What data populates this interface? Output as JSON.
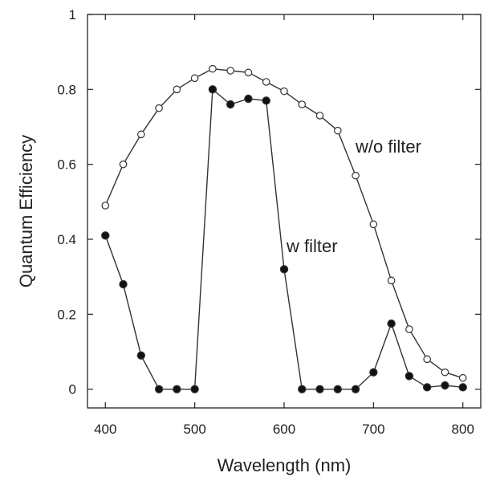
{
  "chart_data": {
    "type": "line",
    "xlabel": "Wavelength (nm)",
    "ylabel": "Quantum Efficiency",
    "xlim": [
      380,
      820
    ],
    "ylim": [
      -0.05,
      1.0
    ],
    "x_ticks": [
      400,
      500,
      600,
      700,
      800
    ],
    "y_ticks": [
      0,
      0.2,
      0.4,
      0.6,
      0.8,
      1
    ],
    "y_tick_labels": [
      "0",
      "0.2",
      "0.4",
      "0.6",
      "0.8",
      "1"
    ],
    "grid": false,
    "legend": "none",
    "x": [
      400,
      420,
      440,
      460,
      480,
      500,
      520,
      540,
      560,
      580,
      600,
      620,
      640,
      660,
      680,
      700,
      720,
      740,
      760,
      780,
      800
    ],
    "series": [
      {
        "label": "w/o filter",
        "marker": "open-circle",
        "values": [
          0.49,
          0.6,
          0.68,
          0.75,
          0.8,
          0.83,
          0.855,
          0.85,
          0.845,
          0.82,
          0.795,
          0.76,
          0.73,
          0.69,
          0.57,
          0.44,
          0.29,
          0.16,
          0.08,
          0.045,
          0.03
        ]
      },
      {
        "label": "w filter",
        "marker": "filled-circle",
        "values": [
          0.41,
          0.28,
          0.09,
          0.0,
          0.0,
          0.0,
          0.8,
          0.76,
          0.775,
          0.77,
          0.32,
          0.0,
          0.0,
          0.0,
          0.0,
          0.045,
          0.175,
          0.035,
          0.005,
          0.01,
          0.005
        ]
      }
    ],
    "colors": {
      "line": "#333333",
      "marker_fill": "#111111",
      "axis": "#222222"
    }
  }
}
